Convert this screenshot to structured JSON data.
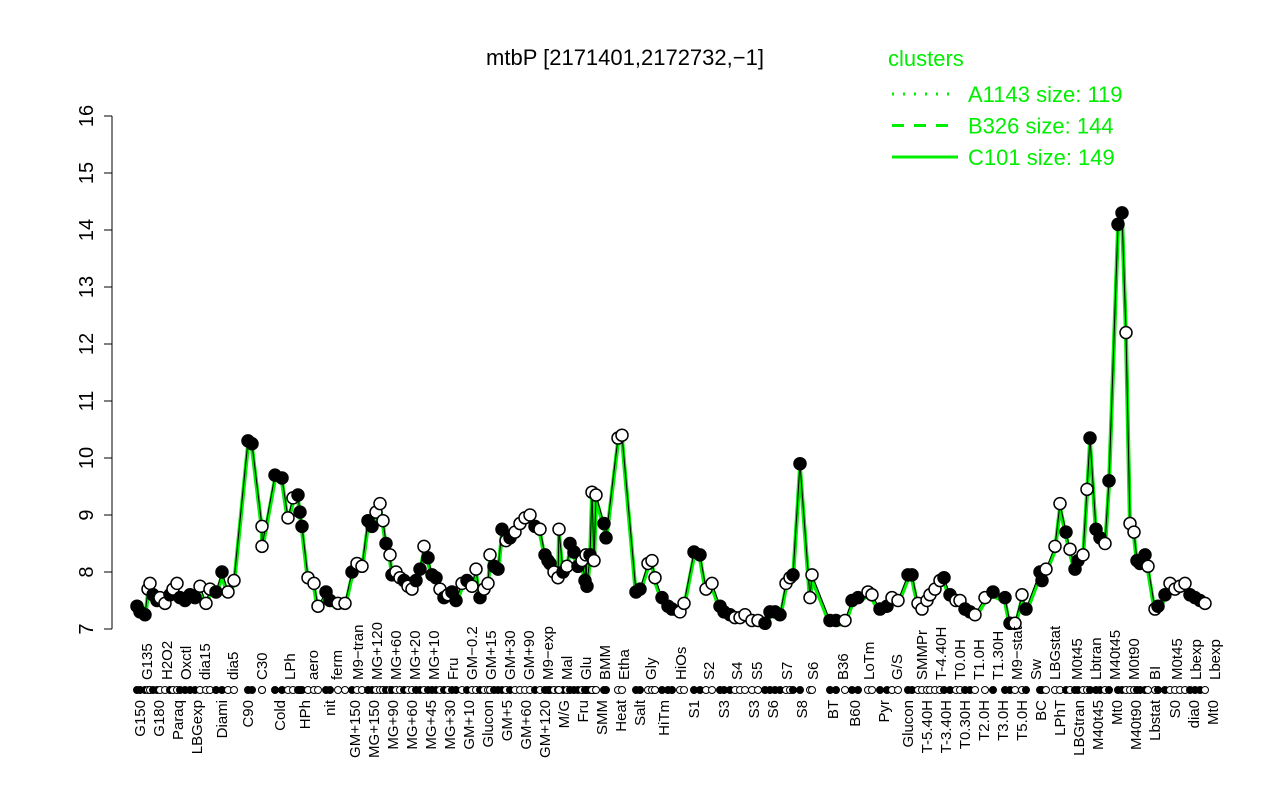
{
  "chart_data": {
    "type": "scatter",
    "title": "mtbP [2171401,2172732,−1]",
    "xlabel": "",
    "ylabel": "",
    "ylim": [
      7,
      16
    ],
    "y_ticks": [
      "7",
      "8",
      "9",
      "10",
      "11",
      "12",
      "13",
      "14",
      "15",
      "16"
    ],
    "grid": false,
    "legend": {
      "title": "clusters",
      "placement": "top-right",
      "color": "#00ee00",
      "entries": [
        {
          "label": "A1143 size: 119",
          "style": "dotted"
        },
        {
          "label": "B326 size: 144",
          "style": "dashed"
        },
        {
          "label": "C101 size: 149",
          "style": "solid"
        }
      ]
    },
    "line_color": "#00ee00",
    "bottom_labels": [
      "G150",
      "G180",
      "Paraq",
      "LBGexp",
      "Diami",
      "C90",
      "Cold",
      "HPh",
      "nit",
      "GM+150",
      "MG+150",
      "MG+90",
      "MG+60",
      "MG+45",
      "MG+30",
      "GM+10",
      "Glucon",
      "GM+5",
      "GM+60",
      "GM+120",
      "M/G",
      "Fru",
      "SMM",
      "Heat",
      "Salt",
      "HiTm",
      "S1",
      "S3",
      "S3",
      "S6",
      "S8",
      "BT",
      "B60",
      "Pyr",
      "Glucon",
      "T-5.40H",
      "T-3.40H",
      "T0.30H",
      "T2.0H",
      "T3.0H",
      "T5.0H",
      "BC",
      "LPhT",
      "LBGtran",
      "M40t45",
      "Mt0",
      "M40t90",
      "Lbstat",
      "S0",
      "dia0",
      "Mt0"
    ],
    "top_labels": [
      "G135",
      "H2O2",
      "Oxctl",
      "dia15",
      "dia5",
      "C30",
      "LPh",
      "aero",
      "ferm",
      "M9−tran",
      "MG+120",
      "MG+60",
      "MG+20",
      "MG+10",
      "Fru",
      "GM−0.2",
      "GM+15",
      "GM+30",
      "GM+90",
      "M9−exp",
      "Mal",
      "Glu",
      "BMM",
      "Etha",
      "Gly",
      "HiOs",
      "S2",
      "S4",
      "S5",
      "S7",
      "S6",
      "B36",
      "LoTm",
      "G/S",
      "SMMPr",
      "T-4.40H",
      "T0.0H",
      "T1.0H",
      "T1.30H",
      "M9−stat",
      "Sw",
      "LBGstat",
      "M0t45",
      "Lbtran",
      "M40t45",
      "M0t90",
      "BI",
      "M0t45",
      "Lbexp",
      "Lbexp"
    ],
    "values": [
      7.4,
      7.3,
      7.25,
      7.7,
      7.8,
      7.6,
      7.5,
      7.55,
      7.45,
      7.6,
      7.7,
      7.8,
      7.55,
      7.5,
      7.6,
      7.55,
      7.75,
      7.45,
      7.7,
      7.65,
      8.0,
      7.65,
      7.85,
      10.3,
      10.25,
      8.8,
      8.45,
      9.7,
      9.65,
      8.95,
      9.3,
      9.35,
      9.05,
      8.8,
      7.9,
      7.8,
      7.4,
      7.65,
      7.5,
      7.45,
      7.45,
      8.0,
      8.15,
      8.1,
      8.9,
      8.8,
      9.05,
      9.2,
      8.9,
      8.5,
      8.3,
      7.95,
      8.0,
      7.9,
      7.85,
      7.75,
      7.7,
      7.85,
      8.05,
      8.45,
      8.25,
      7.95,
      7.9,
      7.7,
      7.55,
      7.6,
      7.65,
      7.5,
      7.8,
      7.85,
      7.75,
      8.05,
      7.55,
      7.7,
      7.8,
      8.3,
      8.1,
      8.05,
      8.75,
      8.55,
      8.6,
      8.7,
      8.85,
      8.95,
      9.0,
      8.8,
      8.75,
      8.3,
      8.2,
      8.15,
      8.0,
      7.9,
      8.0,
      8.1,
      8.5,
      8.35,
      8.1,
      8.75,
      8.2,
      8.3,
      8.3,
      8.2,
      7.85,
      7.75,
      9.4,
      9.35,
      8.85,
      8.6,
      10.35,
      10.4,
      7.65,
      7.7,
      8.15,
      8.2,
      7.9,
      7.55,
      7.4,
      7.35,
      7.3,
      7.45,
      8.35,
      8.3,
      7.7,
      7.8,
      7.4,
      7.3,
      7.25,
      7.2,
      7.2,
      7.25,
      7.15,
      7.15,
      7.1,
      7.3,
      7.3,
      7.25,
      7.8,
      7.9,
      7.95,
      9.9,
      7.55,
      7.95,
      7.15,
      7.15,
      7.15,
      7.5,
      7.55,
      7.65,
      7.6,
      7.35,
      7.4,
      7.55,
      7.5,
      7.95,
      7.95,
      7.45,
      7.35,
      7.5,
      7.6,
      7.7,
      7.85,
      7.9,
      7.6,
      7.5,
      7.5,
      7.35,
      7.3,
      7.25,
      7.55,
      7.65,
      7.55,
      7.1,
      7.1,
      7.6,
      7.35,
      8.0,
      7.85,
      8.05,
      8.45,
      9.2,
      8.7,
      8.4,
      8.05,
      8.2,
      8.3,
      9.45,
      10.35,
      8.75,
      8.6,
      8.5,
      9.6,
      14.1,
      14.3,
      12.2,
      8.85,
      8.7,
      8.2,
      8.15,
      8.3,
      8.1,
      7.35,
      7.4,
      7.6,
      7.8,
      7.7,
      7.75,
      7.8,
      7.6,
      7.55,
      7.5,
      7.45
    ],
    "filled": [
      1,
      1,
      1,
      0,
      0,
      1,
      1,
      0,
      0,
      1,
      0,
      0,
      1,
      1,
      1,
      1,
      0,
      0,
      0,
      1,
      1,
      0,
      0,
      1,
      1,
      0,
      0,
      1,
      1,
      0,
      0,
      1,
      1,
      1,
      0,
      0,
      0,
      1,
      1,
      0,
      0,
      1,
      0,
      0,
      1,
      1,
      0,
      0,
      0,
      1,
      0,
      1,
      0,
      0,
      1,
      0,
      0,
      1,
      1,
      0,
      1,
      1,
      1,
      0,
      1,
      0,
      1,
      1,
      0,
      1,
      0,
      0,
      1,
      0,
      0,
      0,
      1,
      1,
      1,
      0,
      1,
      0,
      0,
      0,
      0,
      1,
      0,
      1,
      1,
      1,
      0,
      0,
      1,
      0,
      1,
      1,
      1,
      0,
      0,
      0,
      1,
      0,
      1,
      1,
      0,
      0,
      1,
      1,
      0,
      0,
      1,
      1,
      0,
      0,
      0,
      1,
      1,
      1,
      0,
      0,
      1,
      1,
      0,
      0,
      1,
      1,
      1,
      0,
      0,
      0,
      0,
      0,
      1,
      1,
      1,
      1,
      0,
      0,
      1,
      1,
      0,
      0,
      1,
      1,
      0,
      1,
      1,
      0,
      0,
      1,
      1,
      0,
      0,
      1,
      1,
      0,
      0,
      0,
      0,
      0,
      0,
      1,
      1,
      0,
      0,
      1,
      1,
      0,
      0,
      1,
      1,
      1,
      0,
      0,
      1,
      1,
      1,
      0,
      0,
      0,
      1,
      0,
      1,
      1,
      0,
      0,
      1,
      1,
      1,
      0,
      1,
      1,
      1,
      0,
      0,
      0,
      1,
      1,
      1,
      0,
      0,
      1,
      1,
      0,
      0,
      0,
      0,
      1,
      1,
      1
    ]
  }
}
